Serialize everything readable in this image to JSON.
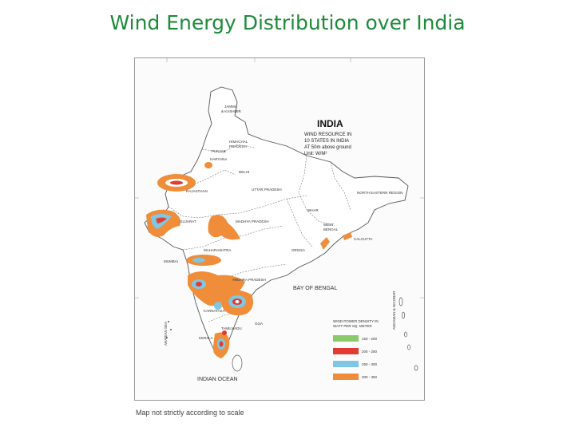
{
  "title": "Wind Energy Distribution over India",
  "map": {
    "heading": "INDIA",
    "subtitle_lines": [
      "WIND RESOURCE IN",
      "10 STATES IN INDIA",
      "AT 50m above ground",
      "Unit: W/M²"
    ],
    "sea_labels": [
      "BAY OF BENGAL",
      "INDIAN OCEAN"
    ],
    "region_labels": [
      "JAMMU",
      "& KASHMIR",
      "HIMACHAL",
      "PRADESH",
      "PUNJAB",
      "HARYANA",
      "DELHI",
      "RAJASTHAN",
      "UTTAR PRADESH",
      "BIHAR",
      "NORTH EASTERN REGION",
      "GUJARAT",
      "MADHYA PRADESH",
      "WEST",
      "BENGAL",
      "MAHARASHTRA",
      "ORISSA",
      "ANDHRA PRADESH",
      "KARNATAKA",
      "KERALA",
      "TAMILNADU",
      "GOA",
      "CALCUTTA",
      "MUMBAI"
    ],
    "legend": {
      "title_lines": [
        "WIND POWER DENSITY IN",
        "WATT PER SQ. METER"
      ],
      "items": [
        {
          "label": "150 - 200",
          "color": "#8cc96b"
        },
        {
          "label": "200 - 250",
          "color": "#e23b32"
        },
        {
          "label": "250 - 300",
          "color": "#7fc7e3"
        },
        {
          "label": "300 - 350",
          "color": "#ef8d3a"
        }
      ]
    },
    "side_label_left": "ARABIAN SEA",
    "side_label_right": "ANDAMAN & NICOBAR"
  },
  "caption": "Map not strictly according to scale"
}
